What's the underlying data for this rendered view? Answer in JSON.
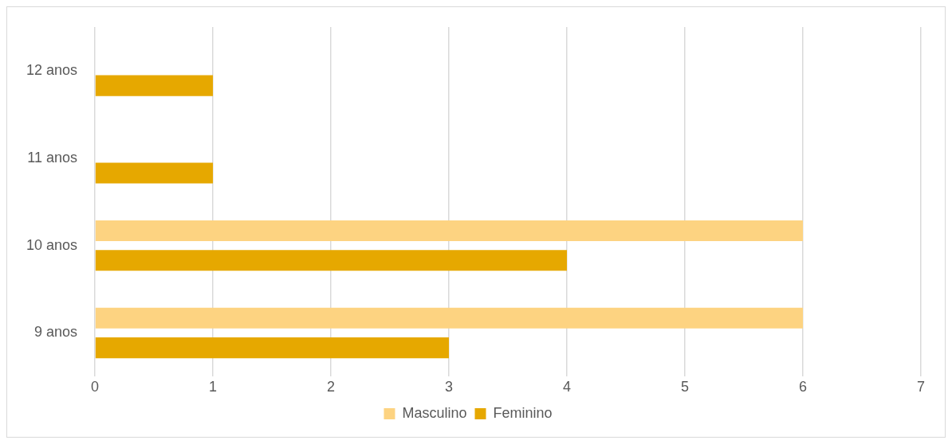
{
  "chart_data": {
    "type": "bar",
    "orientation": "horizontal",
    "categories": [
      "12 anos",
      "11 anos",
      "10 anos",
      "9 anos"
    ],
    "series": [
      {
        "name": "Masculino",
        "color": "#fdd381",
        "values": [
          null,
          null,
          6,
          6
        ]
      },
      {
        "name": "Feminino",
        "color": "#e6a800",
        "values": [
          1,
          1,
          4,
          3
        ]
      }
    ],
    "xlim": [
      0,
      7
    ],
    "xticks": [
      0,
      1,
      2,
      3,
      4,
      5,
      6,
      7
    ],
    "grid": "x",
    "legend": "bottom"
  }
}
